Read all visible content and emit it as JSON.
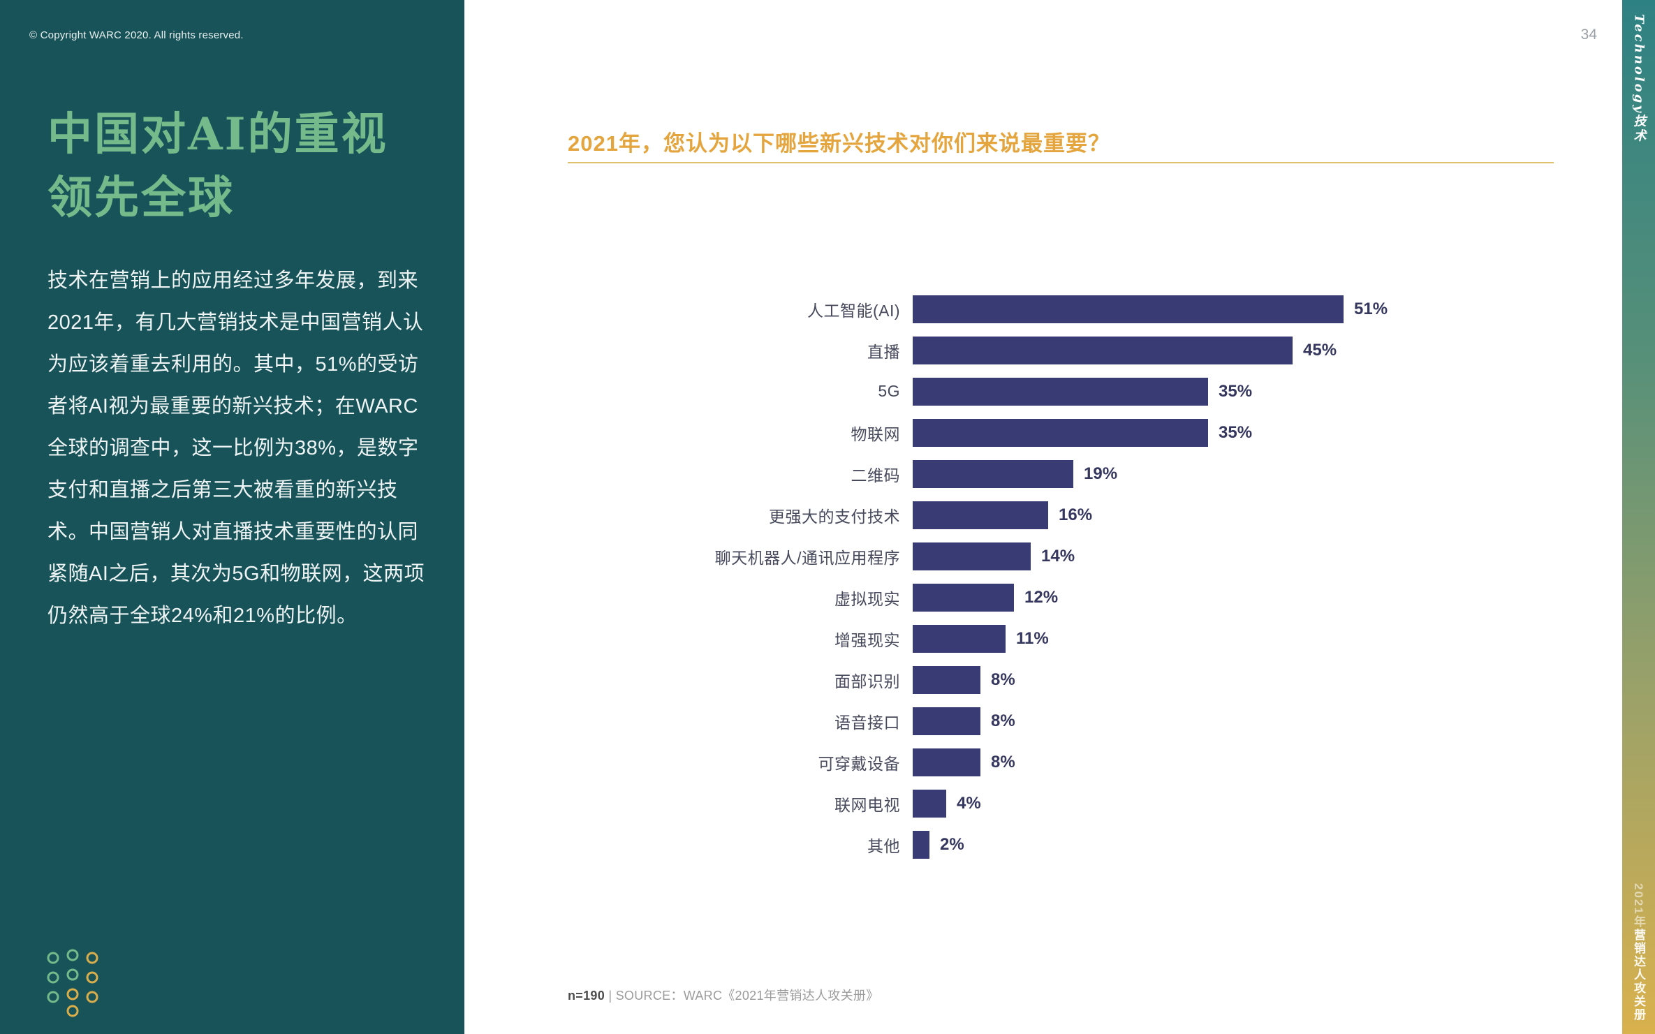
{
  "page": {
    "copyright": "© Copyright WARC 2020. All rights reserved.",
    "page_number": "34"
  },
  "sidebar": {
    "title_line1": "中国对AI的重视",
    "title_line2": "领先全球",
    "body": "技术在营销上的应用经过多年发展，到来2021年，有几大营销技术是中国营销人认为应该着重去利用的。其中，51%的受访者将AI视为最重要的新兴技术；在WARC全球的调查中，这一比例为38%，是数字支付和直播之后第三大被看重的新兴技术。中国营销人对直播技术重要性的认同紧随AI之后，其次为5G和物联网，这两项仍然高于全球24%和21%的比例。"
  },
  "main": {
    "heading": "2021年，您认为以下哪些新兴技术对你们来说最重要？",
    "footnote_bold": "n=190",
    "footnote_rest": " | SOURCE：WARC《2021年营销达人攻关册》"
  },
  "edge": {
    "top_label": "Technology技术",
    "bottom_label_prefix": "2021年",
    "bottom_label_main": "营销达人攻关册"
  },
  "chart_data": {
    "type": "bar",
    "orientation": "horizontal",
    "title": "2021年，您认为以下哪些新兴技术对你们来说最重要？",
    "categories": [
      "人工智能(AI)",
      "直播",
      "5G",
      "物联网",
      "二维码",
      "更强大的支付技术",
      "聊天机器人/通讯应用程序",
      "虚拟现实",
      "增强现实",
      "面部识别",
      "语音接口",
      "可穿戴设备",
      "联网电视",
      "其他"
    ],
    "values": [
      51,
      45,
      35,
      35,
      19,
      16,
      14,
      12,
      11,
      8,
      8,
      8,
      4,
      2
    ],
    "value_labels": [
      "51%",
      "45%",
      "35%",
      "35%",
      "19%",
      "16%",
      "14%",
      "12%",
      "11%",
      "8%",
      "8%",
      "8%",
      "4%",
      "2%"
    ],
    "xlim": [
      0,
      51
    ],
    "grid": false,
    "legend": false,
    "source_note": "n=190 | SOURCE：WARC《2021年营销达人攻关册》"
  },
  "colors": {
    "sidebar_bg": "#18535a",
    "title_green": "#74ba8a",
    "heading_orange": "#e5a53e",
    "bar_color": "#393b74",
    "edge_top": "#2e8183",
    "edge_bottom": "#d9b14d"
  }
}
